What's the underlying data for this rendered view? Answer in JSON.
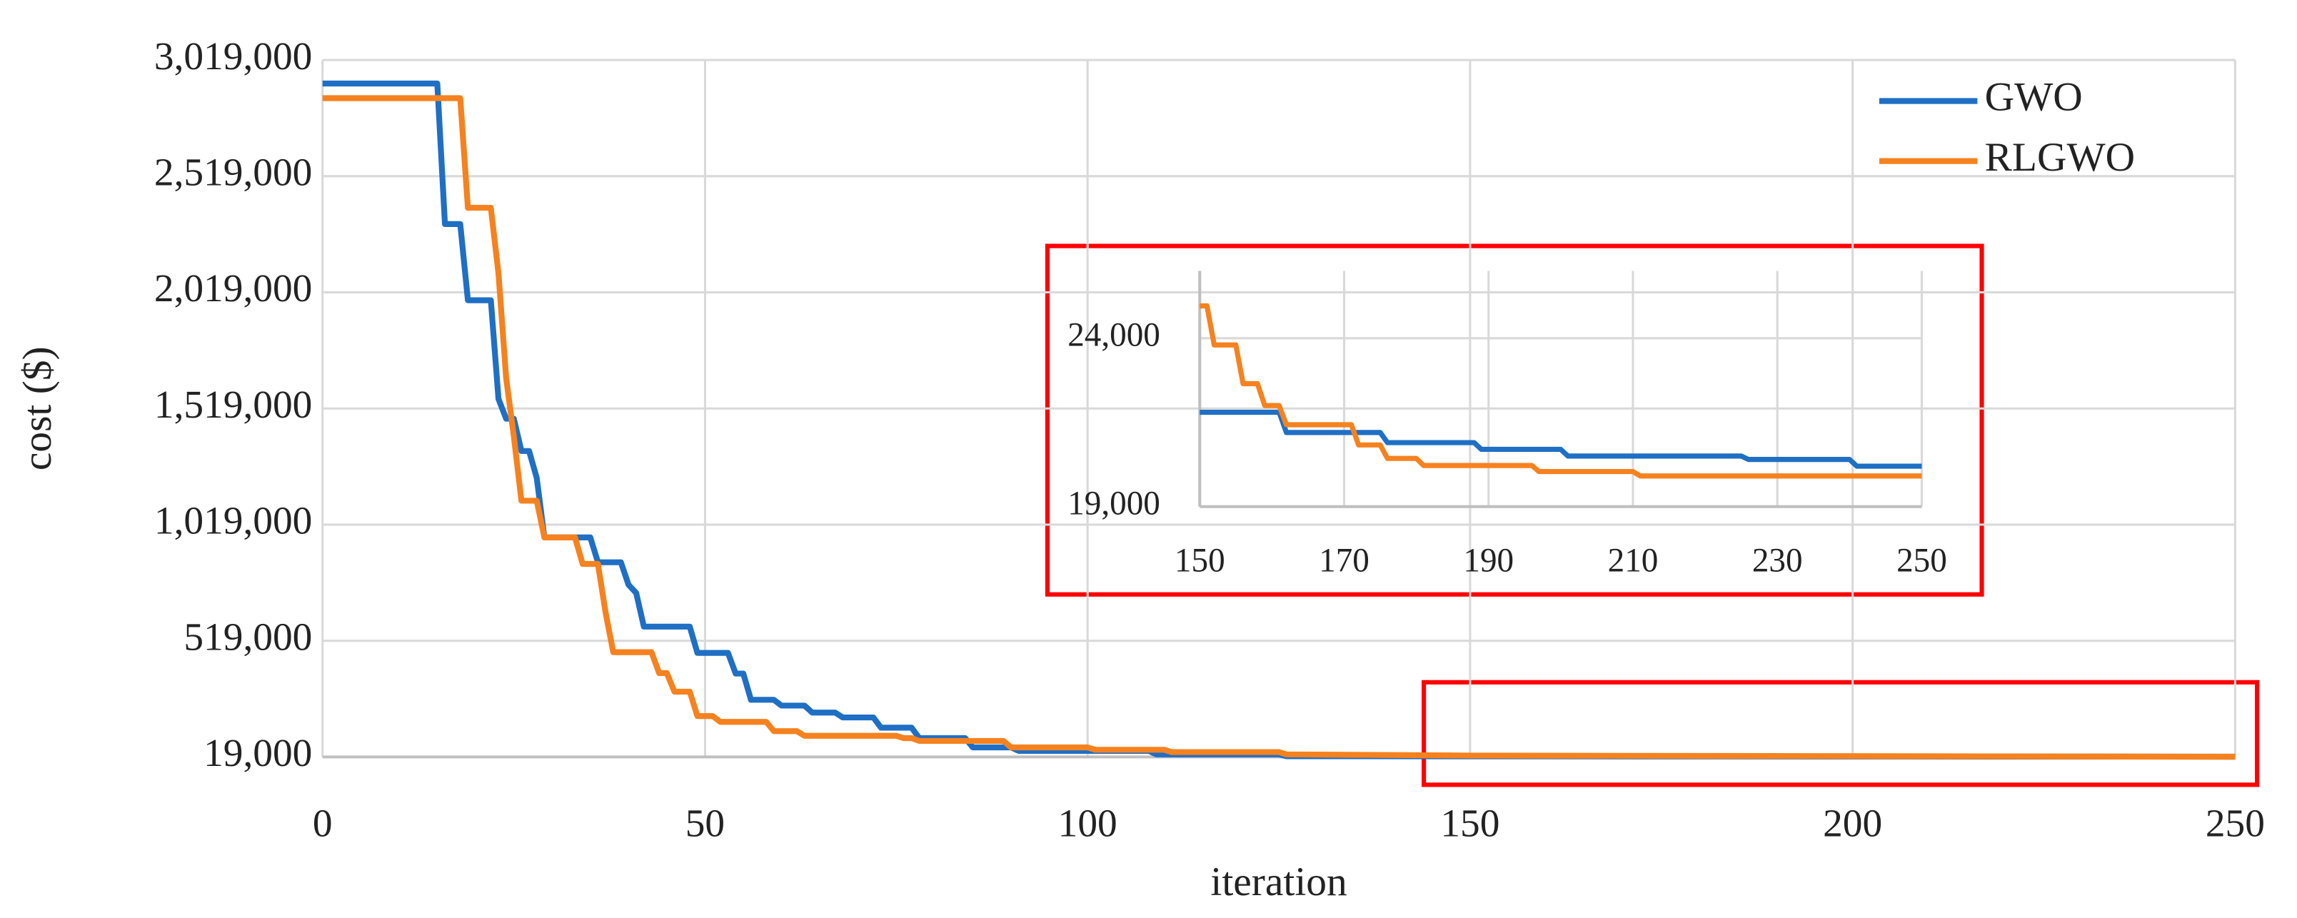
{
  "chart_data": [
    {
      "type": "line",
      "xlabel": "iteration",
      "ylabel": "cost ($)",
      "xlim": [
        0,
        250
      ],
      "xticks": [
        0,
        50,
        100,
        150,
        200,
        250
      ],
      "ylim": [
        19000,
        3019000
      ],
      "yticks": [
        {
          "value": 19000,
          "label": "19,000"
        },
        {
          "value": 519000,
          "label": "519,000"
        },
        {
          "value": 1019000,
          "label": "1,019,000"
        },
        {
          "value": 1519000,
          "label": "1,519,000"
        },
        {
          "value": 2019000,
          "label": "2,019,000"
        },
        {
          "value": 2519000,
          "label": "2,519,000"
        },
        {
          "value": 3019000,
          "label": "3,019,000"
        }
      ],
      "grid": true,
      "legend": "upper right",
      "series": [
        {
          "name": "GWO",
          "color": "#1f6fc4",
          "x": [
            0,
            15,
            16,
            18,
            19,
            22,
            23,
            24,
            25,
            26,
            27,
            28,
            29,
            35,
            36,
            39,
            40,
            41,
            42,
            48,
            49,
            53,
            54,
            55,
            56,
            59,
            60,
            63,
            64,
            67,
            68,
            72,
            73,
            77,
            78,
            84,
            85,
            90,
            91,
            108,
            109,
            125,
            126,
            250
          ],
          "values": [
            2918000,
            2918000,
            2313000,
            2313000,
            1985000,
            1985000,
            1560000,
            1475000,
            1475000,
            1336000,
            1336000,
            1220000,
            964000,
            964000,
            857000,
            857000,
            760000,
            725000,
            580000,
            580000,
            467000,
            467000,
            378000,
            378000,
            265000,
            265000,
            240000,
            240000,
            210000,
            210000,
            189000,
            189000,
            145000,
            145000,
            100000,
            100000,
            60000,
            60000,
            45000,
            45000,
            30000,
            30000,
            22000,
            20200
          ]
        },
        {
          "name": "RLGWO",
          "color": "#f5821f",
          "x": [
            0,
            18,
            19,
            22,
            23,
            24,
            25,
            26,
            28,
            29,
            33,
            34,
            36,
            37,
            38,
            43,
            44,
            45,
            46,
            48,
            49,
            51,
            52,
            58,
            59,
            62,
            63,
            75,
            76,
            77,
            78,
            89,
            90,
            100,
            101,
            110,
            111,
            125,
            126,
            150,
            250
          ],
          "values": [
            2855000,
            2855000,
            2383000,
            2383000,
            2100000,
            1650000,
            1400000,
            1122000,
            1122000,
            964000,
            964000,
            850000,
            850000,
            640000,
            470000,
            470000,
            380000,
            380000,
            300000,
            300000,
            195000,
            195000,
            170000,
            170000,
            130000,
            130000,
            110000,
            110000,
            100000,
            100000,
            88000,
            88000,
            60000,
            60000,
            50000,
            50000,
            40000,
            40000,
            30000,
            25000,
            19900
          ]
        }
      ]
    },
    {
      "type": "line",
      "xlim": [
        150,
        250
      ],
      "xticks": [
        150,
        170,
        190,
        210,
        230,
        250
      ],
      "ylim": [
        19000,
        26000
      ],
      "yticks": [
        {
          "value": 19000,
          "label": "19,000"
        },
        {
          "value": 24000,
          "label": "24,000"
        }
      ],
      "grid": true,
      "series": [
        {
          "color": "#1f6fc4",
          "x": [
            150,
            161,
            162,
            175,
            176,
            188,
            189,
            200,
            201,
            225,
            226,
            240,
            241,
            250
          ],
          "values": [
            21800,
            21800,
            21200,
            21200,
            20900,
            20900,
            20700,
            20700,
            20500,
            20500,
            20400,
            20400,
            20200,
            20200
          ]
        },
        {
          "color": "#f5821f",
          "x": [
            150,
            151,
            152,
            155,
            156,
            158,
            159,
            161,
            162,
            171,
            172,
            175,
            176,
            180,
            181,
            196,
            197,
            210,
            211,
            250
          ],
          "values": [
            24960,
            24960,
            23800,
            23800,
            22650,
            22650,
            22000,
            22000,
            21430,
            21430,
            20830,
            20830,
            20430,
            20430,
            20220,
            20220,
            20040,
            20040,
            19910,
            19910
          ]
        }
      ]
    }
  ]
}
